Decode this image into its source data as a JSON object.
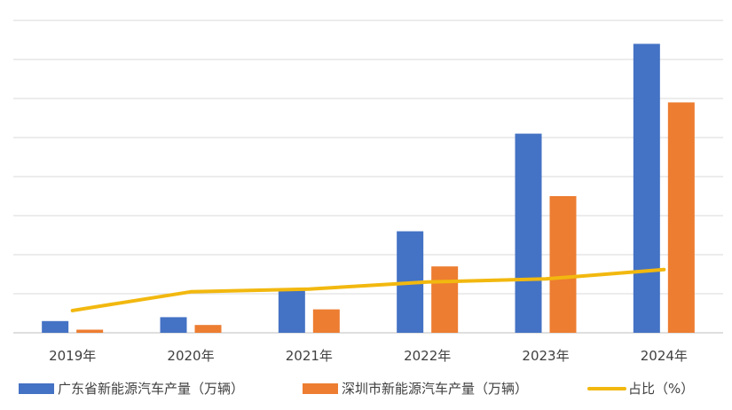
{
  "chart_data": {
    "type": "bar",
    "categories": [
      "2019年",
      "2020年",
      "2021年",
      "2022年",
      "2023年",
      "2024年"
    ],
    "series": [
      {
        "name": "广东省新能源汽车产量（万辆）",
        "type": "bar",
        "color": "#4472C4",
        "values": [
          0.3,
          0.4,
          1.1,
          2.6,
          5.1,
          7.4
        ]
      },
      {
        "name": "深圳市新能源汽车产量（万辆）",
        "type": "bar",
        "color": "#ED7D31",
        "values": [
          0.08,
          0.2,
          0.6,
          1.7,
          3.5,
          5.9
        ]
      },
      {
        "name": "占比（%）",
        "type": "line",
        "color": "#F2B80F",
        "values": [
          0.57,
          1.05,
          1.12,
          1.3,
          1.38,
          1.62
        ]
      }
    ],
    "ylim": [
      0,
      8
    ],
    "ytick_count": 8,
    "grid": true,
    "legend_position": "bottom"
  }
}
